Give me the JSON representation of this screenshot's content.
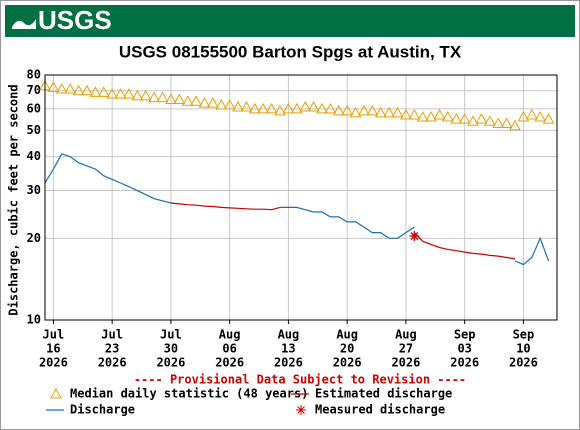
{
  "header": {
    "logo": "USGS"
  },
  "chart_data": {
    "type": "line",
    "title": "USGS 08155500 Barton Spgs at Austin, TX",
    "y_label": "Discharge, cubic feet per second",
    "notice": "---- Provisional Data Subject to Revision ----",
    "yscale": "log",
    "grid": true,
    "ylim": [
      10,
      80
    ],
    "yticks": [
      10,
      20,
      30,
      40,
      50,
      60,
      70,
      80
    ],
    "xlim": [
      "2026-07-15",
      "2026-09-14"
    ],
    "xticks": [
      {
        "value": "2026-07-16",
        "label": [
          "Jul",
          "16",
          "2026"
        ]
      },
      {
        "value": "2026-07-23",
        "label": [
          "Jul",
          "23",
          "2026"
        ]
      },
      {
        "value": "2026-07-30",
        "label": [
          "Jul",
          "30",
          "2026"
        ]
      },
      {
        "value": "2026-08-06",
        "label": [
          "Aug",
          "06",
          "2026"
        ]
      },
      {
        "value": "2026-08-13",
        "label": [
          "Aug",
          "13",
          "2026"
        ]
      },
      {
        "value": "2026-08-20",
        "label": [
          "Aug",
          "20",
          "2026"
        ]
      },
      {
        "value": "2026-08-27",
        "label": [
          "Aug",
          "27",
          "2026"
        ]
      },
      {
        "value": "2026-09-03",
        "label": [
          "Sep",
          "03",
          "2026"
        ]
      },
      {
        "value": "2026-09-10",
        "label": [
          "Sep",
          "10",
          "2026"
        ]
      }
    ],
    "x": [
      "2026-07-15",
      "2026-07-16",
      "2026-07-17",
      "2026-07-18",
      "2026-07-19",
      "2026-07-20",
      "2026-07-21",
      "2026-07-22",
      "2026-07-23",
      "2026-07-24",
      "2026-07-25",
      "2026-07-26",
      "2026-07-27",
      "2026-07-28",
      "2026-07-29",
      "2026-07-30",
      "2026-07-31",
      "2026-08-01",
      "2026-08-02",
      "2026-08-03",
      "2026-08-04",
      "2026-08-05",
      "2026-08-06",
      "2026-08-07",
      "2026-08-08",
      "2026-08-09",
      "2026-08-10",
      "2026-08-11",
      "2026-08-12",
      "2026-08-13",
      "2026-08-14",
      "2026-08-15",
      "2026-08-16",
      "2026-08-17",
      "2026-08-18",
      "2026-08-19",
      "2026-08-20",
      "2026-08-21",
      "2026-08-22",
      "2026-08-23",
      "2026-08-24",
      "2026-08-25",
      "2026-08-26",
      "2026-08-27",
      "2026-08-28",
      "2026-08-29",
      "2026-08-30",
      "2026-08-31",
      "2026-09-01",
      "2026-09-02",
      "2026-09-03",
      "2026-09-04",
      "2026-09-05",
      "2026-09-06",
      "2026-09-07",
      "2026-09-08",
      "2026-09-09",
      "2026-09-10",
      "2026-09-11",
      "2026-09-12",
      "2026-09-13"
    ],
    "series": [
      {
        "name": "Median daily statistic (48 years)",
        "color": "#e8a000",
        "mark": "triangle",
        "values": [
          73,
          72,
          71,
          71,
          70,
          70,
          69,
          69,
          68,
          68,
          68,
          67,
          67,
          66,
          66,
          65,
          65,
          64,
          64,
          63,
          63,
          62,
          62,
          61,
          61,
          60,
          60,
          60,
          59,
          60,
          60,
          61,
          61,
          60,
          60,
          59,
          59,
          58,
          59,
          59,
          58,
          58,
          58,
          57,
          57,
          56,
          56,
          57,
          56,
          55,
          55,
          54,
          55,
          54,
          53,
          53,
          52,
          56,
          57,
          56,
          55
        ]
      },
      {
        "name": "Estimated discharge",
        "color": "#cc0000",
        "mark": "line",
        "values": [
          null,
          null,
          null,
          null,
          null,
          null,
          null,
          null,
          null,
          null,
          null,
          null,
          null,
          null,
          null,
          27,
          26.8,
          26.6,
          26.5,
          26.3,
          26.2,
          26,
          25.9,
          25.8,
          25.7,
          25.6,
          25.6,
          25.5,
          26,
          null,
          null,
          null,
          null,
          null,
          null,
          null,
          null,
          null,
          null,
          null,
          null,
          null,
          null,
          null,
          21,
          19.5,
          19,
          18.5,
          18.2,
          18,
          17.8,
          17.6,
          17.5,
          17.3,
          17.2,
          17,
          16.8,
          null,
          null,
          null,
          null
        ]
      },
      {
        "name": "Discharge",
        "color": "#1a6fb0",
        "mark": "line",
        "values": [
          32,
          36,
          41,
          40,
          38,
          37,
          36,
          34,
          33,
          32,
          31,
          30,
          29,
          28,
          27.5,
          27,
          null,
          null,
          null,
          null,
          null,
          null,
          null,
          null,
          null,
          null,
          null,
          null,
          26,
          26,
          26,
          25.5,
          25,
          25,
          24,
          24,
          23,
          23,
          22,
          21,
          21,
          20,
          20,
          21,
          22,
          null,
          null,
          null,
          null,
          null,
          null,
          null,
          null,
          null,
          null,
          null,
          16.5,
          16,
          17,
          20,
          16.5
        ]
      },
      {
        "name": "Measured discharge",
        "color": "#cc0000",
        "mark": "asterisk",
        "values": [
          null,
          null,
          null,
          null,
          null,
          null,
          null,
          null,
          null,
          null,
          null,
          null,
          null,
          null,
          null,
          null,
          null,
          null,
          null,
          null,
          null,
          null,
          null,
          null,
          null,
          null,
          null,
          null,
          null,
          null,
          null,
          null,
          null,
          null,
          null,
          null,
          null,
          null,
          null,
          null,
          null,
          null,
          null,
          null,
          20.4,
          null,
          null,
          null,
          null,
          null,
          null,
          null,
          null,
          null,
          null,
          null,
          null,
          null,
          null,
          null,
          null
        ]
      }
    ]
  }
}
